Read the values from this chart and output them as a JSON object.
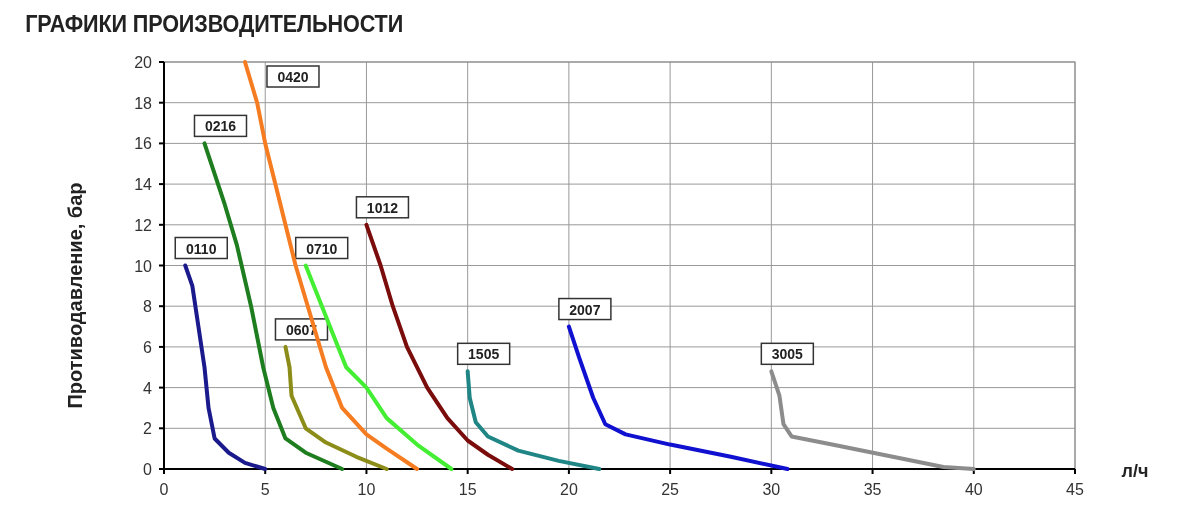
{
  "chart_data": {
    "type": "line",
    "title": "ГРАФИКИ ПРОИЗВОДИТЕЛЬНОСТИ",
    "xlabel": "л/ч",
    "ylabel": "Противодавление, бар",
    "xlim": [
      0,
      45
    ],
    "xticks": [
      0,
      5,
      10,
      15,
      20,
      25,
      30,
      35,
      40,
      45
    ],
    "ylim": [
      0,
      20
    ],
    "yticks": [
      0,
      2,
      4,
      6,
      8,
      10,
      12,
      14,
      16,
      18,
      20
    ],
    "grid": true,
    "legend": false,
    "marker": "none",
    "line_style": "solid",
    "series": [
      {
        "name": "0110",
        "color": "#1a1a8c",
        "x": [
          1.05,
          1.4,
          1.7,
          2.0,
          2.2,
          2.5,
          3.2,
          4,
          5
        ],
        "values": [
          10,
          9,
          7,
          5,
          3,
          1.5,
          0.8,
          0.3,
          0
        ]
      },
      {
        "name": "0216",
        "color": "#1e7d1e",
        "x": [
          2,
          3.0,
          3.6,
          4.3,
          4.9,
          5.4,
          6.0,
          7,
          8.8
        ],
        "values": [
          16,
          13,
          11,
          8,
          5,
          3,
          1.5,
          0.8,
          0
        ]
      },
      {
        "name": "0420",
        "color": "#f57c20",
        "x": [
          4,
          4.6,
          5,
          5.5,
          6,
          6.5,
          7.4,
          8,
          8.8,
          10,
          11,
          12.5
        ],
        "values": [
          20,
          18,
          16,
          14,
          12,
          10,
          7,
          5,
          3,
          1.7,
          1,
          0
        ]
      },
      {
        "name": "0710",
        "color": "#44ee33",
        "x": [
          7,
          7.8,
          8.6,
          9,
          10,
          11,
          12.5,
          14.2
        ],
        "values": [
          10,
          8,
          6,
          5,
          4,
          2.5,
          1.2,
          0
        ]
      },
      {
        "name": "0607",
        "color": "#8c8c18",
        "x": [
          6,
          6.2,
          6.3,
          7,
          8,
          9.5,
          11
        ],
        "values": [
          6,
          5,
          3.6,
          2,
          1.3,
          0.6,
          0
        ]
      },
      {
        "name": "1012",
        "color": "#7a0c0c",
        "x": [
          10,
          10.7,
          11.3,
          12,
          13,
          14,
          15,
          16,
          17.2
        ],
        "values": [
          12,
          10,
          8,
          6,
          4,
          2.5,
          1.4,
          0.7,
          0
        ]
      },
      {
        "name": "1505",
        "color": "#1f8585",
        "x": [
          15,
          15.1,
          15.4,
          16,
          17.5,
          19.5,
          21.5
        ],
        "values": [
          4.8,
          3.5,
          2.3,
          1.6,
          0.9,
          0.4,
          0
        ]
      },
      {
        "name": "2007",
        "color": "#1010d0",
        "x": [
          20,
          20.5,
          21.2,
          21.8,
          22.8,
          25,
          28,
          30.8
        ],
        "values": [
          7,
          5.5,
          3.5,
          2.2,
          1.7,
          1.2,
          0.6,
          0
        ]
      },
      {
        "name": "3005",
        "color": "#8c8c8c",
        "x": [
          30,
          30.4,
          30.6,
          31,
          33,
          36,
          38.5,
          40
        ],
        "values": [
          4.8,
          3.6,
          2.2,
          1.6,
          1.2,
          0.6,
          0.1,
          0
        ]
      }
    ]
  }
}
